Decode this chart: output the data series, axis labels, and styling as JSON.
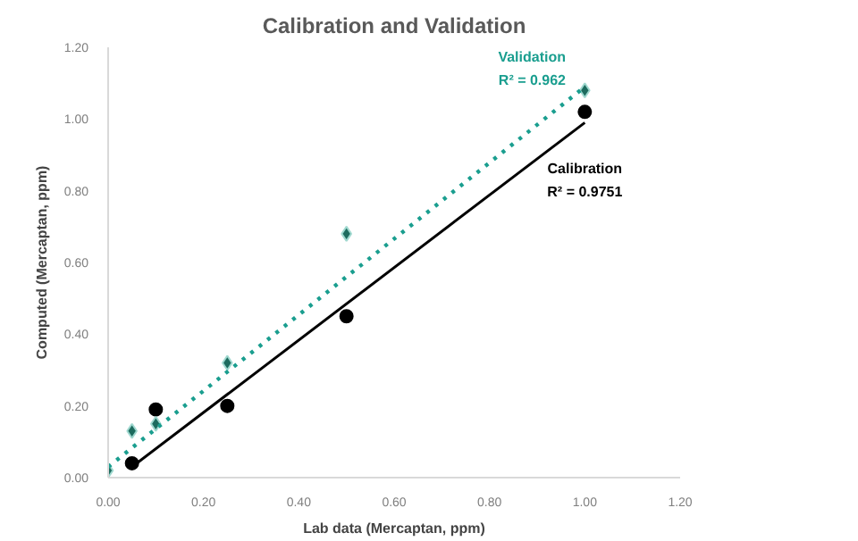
{
  "chart_data": {
    "type": "scatter",
    "title": "Calibration and Validation",
    "xlabel": "Lab data (Mercaptan, ppm)",
    "ylabel": "Computed (Mercaptan, ppm)",
    "xlim": [
      0,
      1.2
    ],
    "ylim": [
      0,
      1.2
    ],
    "xticks": [
      {
        "value": 0,
        "label": "0.00"
      },
      {
        "value": 0.2,
        "label": "0.20"
      },
      {
        "value": 0.4,
        "label": "0.40"
      },
      {
        "value": 0.6,
        "label": "0.60"
      },
      {
        "value": 0.8,
        "label": "0.80"
      },
      {
        "value": 1,
        "label": "1.00"
      },
      {
        "value": 1.2,
        "label": "1.20"
      }
    ],
    "yticks": [
      {
        "value": 0,
        "label": "0.00"
      },
      {
        "value": 0.2,
        "label": "0.20"
      },
      {
        "value": 0.4,
        "label": "0.40"
      },
      {
        "value": 0.6,
        "label": "0.60"
      },
      {
        "value": 0.8,
        "label": "0.80"
      },
      {
        "value": 1,
        "label": "1.00"
      },
      {
        "value": 1.2,
        "label": "1.20"
      }
    ],
    "grid": false,
    "series": [
      {
        "name": "Calibration",
        "marker": "circle",
        "color": "#000000",
        "x": [
          0.05,
          0.1,
          0.25,
          0.5,
          1.0
        ],
        "values": [
          0.04,
          0.19,
          0.2,
          0.45,
          1.02
        ]
      },
      {
        "name": "Validation",
        "marker": "diamond",
        "color": "#1d6b5e",
        "x": [
          0,
          0.05,
          0.1,
          0.25,
          0.5,
          1.0
        ],
        "values": [
          0.02,
          0.13,
          0.15,
          0.32,
          0.68,
          1.08
        ]
      },
      {
        "type": "line",
        "line_style": "solid",
        "color": "#000000",
        "x": [
          0.05,
          1.0
        ],
        "values": [
          0.03,
          0.99
        ]
      },
      {
        "type": "line",
        "line_style": "dotted",
        "color": "#1a9e8f",
        "x": [
          0,
          1.0
        ],
        "values": [
          0.03,
          1.09
        ]
      }
    ],
    "annotations": [
      "R² = 0.9751",
      "R² = 0.962"
    ]
  }
}
